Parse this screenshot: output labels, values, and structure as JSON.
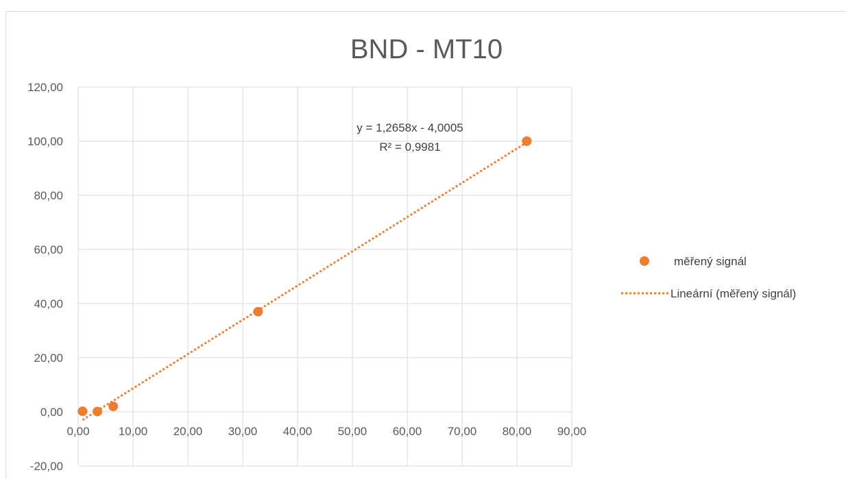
{
  "chart_data": {
    "type": "scatter",
    "title": "BND - MT10",
    "xlabel": "",
    "ylabel": "",
    "xlim": [
      0,
      90
    ],
    "ylim": [
      -20,
      120
    ],
    "x_ticks": [
      0,
      10,
      20,
      30,
      40,
      50,
      60,
      70,
      80,
      90
    ],
    "y_ticks": [
      -20,
      0,
      20,
      40,
      60,
      80,
      100,
      120
    ],
    "x_tick_labels": [
      "0,00",
      "10,00",
      "20,00",
      "30,00",
      "40,00",
      "50,00",
      "60,00",
      "70,00",
      "80,00",
      "90,00"
    ],
    "y_tick_labels": [
      "-20,00",
      "0,00",
      "20,00",
      "40,00",
      "60,00",
      "80,00",
      "100,00",
      "120,00"
    ],
    "grid": true,
    "legend_position": "right",
    "series": [
      {
        "name": "měřený signál",
        "kind": "scatter",
        "color": "#ED7D31",
        "points": [
          {
            "x": 0.8,
            "y": 0.2
          },
          {
            "x": 3.5,
            "y": 0.1
          },
          {
            "x": 6.4,
            "y": 2.0
          },
          {
            "x": 32.8,
            "y": 37.0
          },
          {
            "x": 81.8,
            "y": 100.0
          }
        ]
      },
      {
        "name": "Lineární (měřený signál)",
        "kind": "trendline",
        "color": "#ED7D31",
        "slope": 1.2658,
        "intercept": -4.0005,
        "x_range": [
          0.8,
          81.8
        ]
      }
    ],
    "annotations": [
      {
        "text": "y = 1,2658x - 4,0005"
      },
      {
        "text": "R² = 0,9981"
      }
    ]
  }
}
